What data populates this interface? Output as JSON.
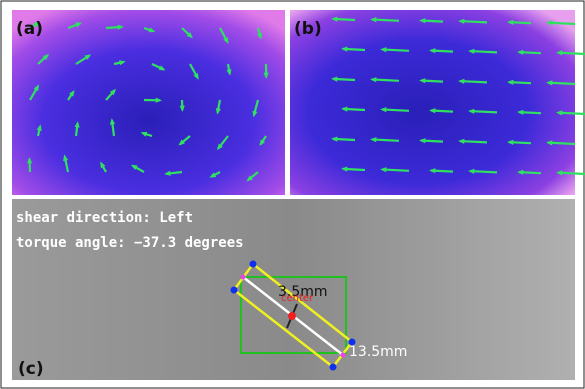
{
  "panels": [
    {
      "label": "(a)"
    },
    {
      "label": "(b)"
    },
    {
      "label": "(c)",
      "lines": [
        "shear direction: Left",
        "torque angle: −37.3 degrees"
      ],
      "annotations": {
        "width": "3.5mm",
        "center": "center",
        "length": "13.5mm"
      }
    }
  ]
}
